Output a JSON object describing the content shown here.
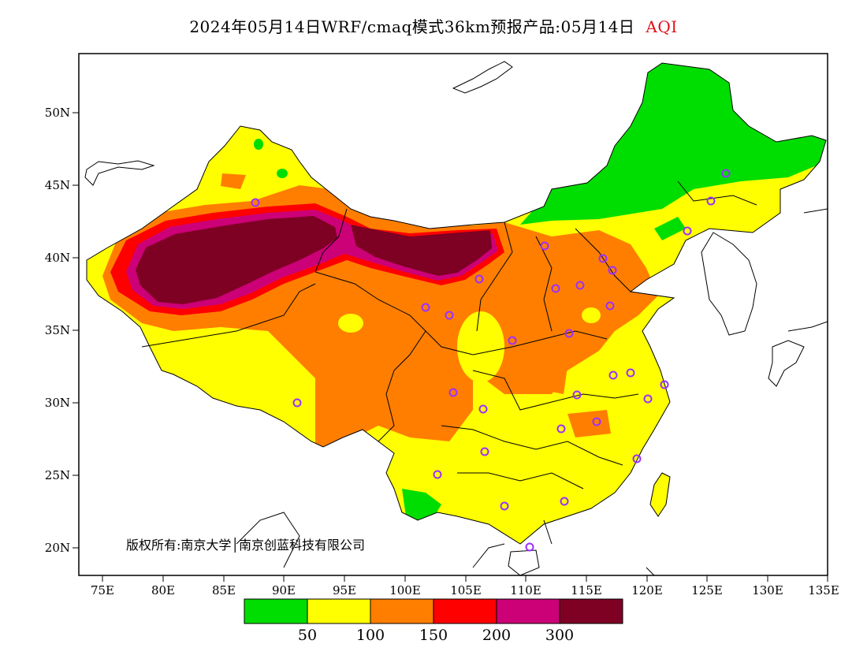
{
  "title": {
    "main": "2024年05月14日WRF/cmaq模式36km预报产品:05月14日",
    "product": "AQI"
  },
  "axes": {
    "lat_labels": [
      "20N",
      "25N",
      "30N",
      "35N",
      "40N",
      "45N",
      "50N"
    ],
    "lon_labels": [
      "75E",
      "80E",
      "85E",
      "90E",
      "95E",
      "100E",
      "105E",
      "110E",
      "115E",
      "120E",
      "125E",
      "130E",
      "135E"
    ]
  },
  "copyright": "版权所有:南京大学│南京创蓝科技有限公司",
  "legend": {
    "thresholds": [
      "50",
      "100",
      "150",
      "200",
      "300"
    ],
    "colors": [
      "#00dd00",
      "#ffff00",
      "#ff7e00",
      "#ff0000",
      "#cc0077",
      "#7e0023"
    ]
  }
}
